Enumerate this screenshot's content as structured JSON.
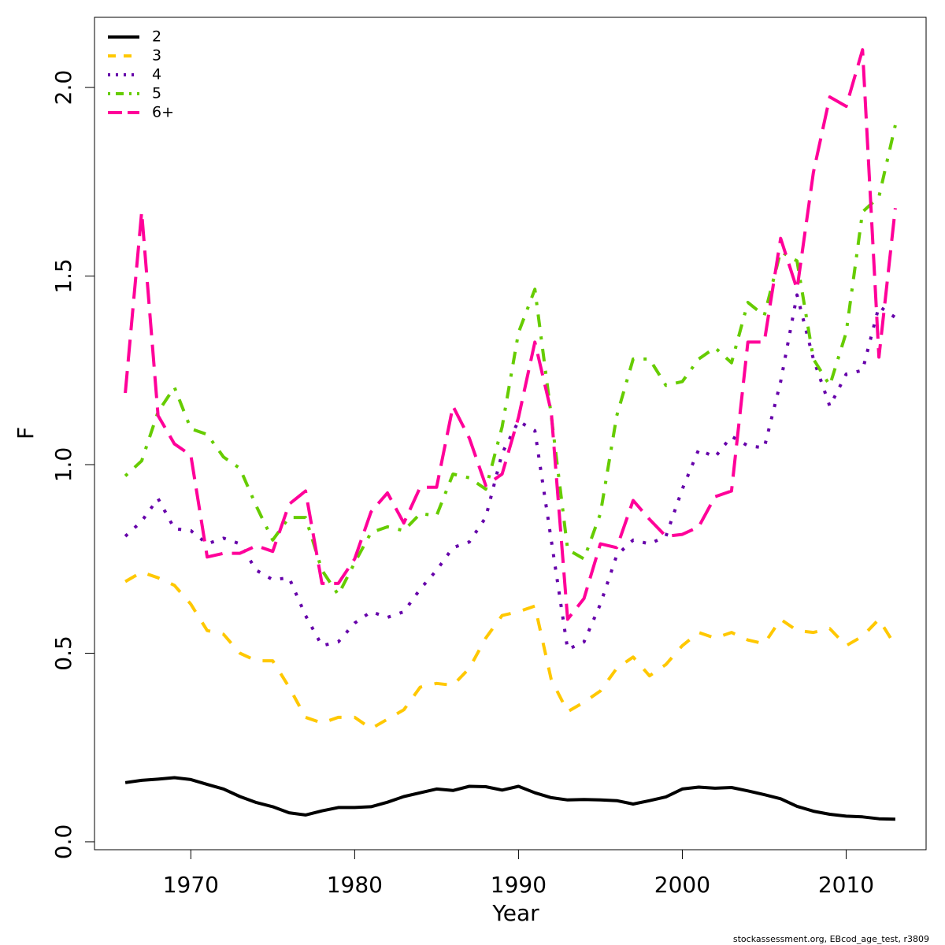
{
  "chart_data": {
    "type": "line",
    "x_label": "Year",
    "y_label": "F",
    "footer": "stockassessment.org, EBcod_age_test, r3809",
    "x": [
      1966,
      1967,
      1968,
      1969,
      1970,
      1971,
      1972,
      1973,
      1974,
      1975,
      1976,
      1977,
      1978,
      1979,
      1980,
      1981,
      1982,
      1983,
      1984,
      1985,
      1986,
      1987,
      1988,
      1989,
      1990,
      1991,
      1992,
      1993,
      1994,
      1995,
      1996,
      1997,
      1998,
      1999,
      2000,
      2001,
      2002,
      2003,
      2004,
      2005,
      2006,
      2007,
      2008,
      2009,
      2010,
      2011,
      2012,
      2013
    ],
    "series": [
      {
        "name": "2",
        "color": "#000000",
        "dash": "solid",
        "values": [
          0.157,
          0.163,
          0.166,
          0.17,
          0.165,
          0.152,
          0.14,
          0.12,
          0.104,
          0.093,
          0.077,
          0.071,
          0.082,
          0.091,
          0.091,
          0.093,
          0.105,
          0.12,
          0.13,
          0.14,
          0.136,
          0.147,
          0.146,
          0.137,
          0.147,
          0.13,
          0.117,
          0.111,
          0.112,
          0.111,
          0.109,
          0.1,
          0.109,
          0.119,
          0.14,
          0.145,
          0.142,
          0.144,
          0.135,
          0.125,
          0.114,
          0.094,
          0.081,
          0.073,
          0.068,
          0.066,
          0.061,
          0.06
        ]
      },
      {
        "name": "3",
        "color": "#ffc800",
        "dash": "dashed",
        "values": [
          0.69,
          0.715,
          0.7,
          0.68,
          0.63,
          0.56,
          0.55,
          0.5,
          0.48,
          0.48,
          0.41,
          0.33,
          0.315,
          0.33,
          0.33,
          0.3,
          0.325,
          0.35,
          0.41,
          0.42,
          0.415,
          0.46,
          0.54,
          0.6,
          0.61,
          0.625,
          0.43,
          0.345,
          0.37,
          0.4,
          0.46,
          0.49,
          0.44,
          0.47,
          0.52,
          0.555,
          0.54,
          0.555,
          0.535,
          0.525,
          0.59,
          0.56,
          0.555,
          0.565,
          0.52,
          0.545,
          0.59,
          0.52
        ]
      },
      {
        "name": "4",
        "color": "#6600aa",
        "dash": "dotted",
        "values": [
          0.81,
          0.85,
          0.91,
          0.83,
          0.825,
          0.79,
          0.805,
          0.79,
          0.72,
          0.695,
          0.7,
          0.6,
          0.52,
          0.53,
          0.58,
          0.61,
          0.595,
          0.61,
          0.67,
          0.72,
          0.78,
          0.795,
          0.86,
          1.03,
          1.115,
          1.09,
          0.8,
          0.51,
          0.53,
          0.63,
          0.76,
          0.8,
          0.79,
          0.81,
          0.935,
          1.04,
          1.02,
          1.075,
          1.05,
          1.045,
          1.22,
          1.45,
          1.28,
          1.155,
          1.24,
          1.25,
          1.42,
          1.39
        ]
      },
      {
        "name": "5",
        "color": "#66cc00",
        "dash": "dotdash",
        "values": [
          0.97,
          1.01,
          1.14,
          1.205,
          1.095,
          1.08,
          1.02,
          0.99,
          0.89,
          0.8,
          0.86,
          0.86,
          0.72,
          0.655,
          0.74,
          0.82,
          0.835,
          0.825,
          0.87,
          0.865,
          0.975,
          0.965,
          0.935,
          1.1,
          1.35,
          1.465,
          1.13,
          0.775,
          0.75,
          0.87,
          1.13,
          1.28,
          1.28,
          1.21,
          1.22,
          1.28,
          1.31,
          1.27,
          1.43,
          1.395,
          1.565,
          1.54,
          1.28,
          1.21,
          1.35,
          1.67,
          1.71,
          1.9
        ]
      },
      {
        "name": "6+",
        "color": "#ff0099",
        "dash": "longdash",
        "values": [
          1.19,
          1.67,
          1.13,
          1.055,
          1.025,
          0.755,
          0.765,
          0.765,
          0.785,
          0.77,
          0.895,
          0.93,
          0.685,
          0.685,
          0.75,
          0.875,
          0.925,
          0.845,
          0.94,
          0.94,
          1.155,
          1.07,
          0.945,
          0.975,
          1.125,
          1.325,
          1.14,
          0.59,
          0.645,
          0.79,
          0.78,
          0.905,
          0.855,
          0.81,
          0.815,
          0.835,
          0.915,
          0.93,
          1.325,
          1.325,
          1.6,
          1.465,
          1.775,
          1.975,
          1.95,
          2.1,
          1.285,
          1.68
        ]
      }
    ],
    "xlim": [
      1964.12,
      2014.88
    ],
    "xticks": [
      1970,
      1980,
      1990,
      2000,
      2010
    ],
    "ylim": [
      -0.021,
      2.186
    ],
    "yticks": [
      {
        "value": 0,
        "label": "0.0"
      },
      0.5,
      {
        "value": 1,
        "label": "1.0"
      },
      1.5,
      {
        "value": 2,
        "label": "2.0"
      }
    ],
    "grid": false,
    "legend": "top-left"
  }
}
